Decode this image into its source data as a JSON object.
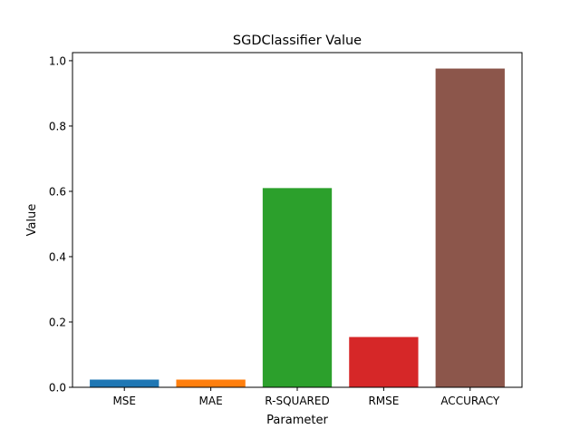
{
  "chart_data": {
    "type": "bar",
    "title": "SGDClassifier Value",
    "xlabel": "Parameter",
    "ylabel": "Value",
    "categories": [
      "MSE",
      "MAE",
      "R-SQUARED",
      "RMSE",
      "ACCURACY"
    ],
    "values": [
      0.0236,
      0.0236,
      0.61,
      0.154,
      0.976
    ],
    "colors": [
      "#1f77b4",
      "#ff7f0e",
      "#2ca02c",
      "#d62728",
      "#8c564b"
    ],
    "ylim": [
      0,
      1.0248
    ],
    "yticks": [
      0.0,
      0.2,
      0.4,
      0.6,
      0.8,
      1.0
    ],
    "ytick_labels": [
      "0.0",
      "0.2",
      "0.4",
      "0.6",
      "0.8",
      "1.0"
    ],
    "grid": false,
    "legend": "none"
  }
}
